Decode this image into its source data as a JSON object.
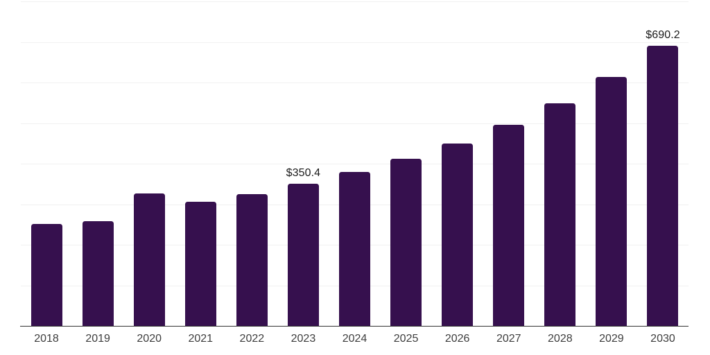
{
  "chart_data": {
    "type": "bar",
    "title": "",
    "xlabel": "",
    "ylabel": "",
    "categories": [
      "2018",
      "2019",
      "2020",
      "2021",
      "2022",
      "2023",
      "2024",
      "2025",
      "2026",
      "2027",
      "2028",
      "2029",
      "2030"
    ],
    "values": [
      251,
      259,
      327,
      306,
      325,
      350.4,
      379,
      412,
      449,
      495,
      549,
      613,
      690.2
    ],
    "data_labels": [
      {
        "category": "2023",
        "text": "$350.4"
      },
      {
        "category": "2030",
        "text": "$690.2"
      }
    ],
    "ylim": [
      0,
      800
    ],
    "gridline_interval": 100,
    "grid": "horizontal",
    "y_tick_labels_visible": false,
    "legend": "none",
    "bar_color": "#36104E",
    "axis_color": "#333333",
    "gridline_color": "#f1f1f1",
    "tick_label_color": "#3d3d3d",
    "data_label_color": "#1a1a1a"
  }
}
